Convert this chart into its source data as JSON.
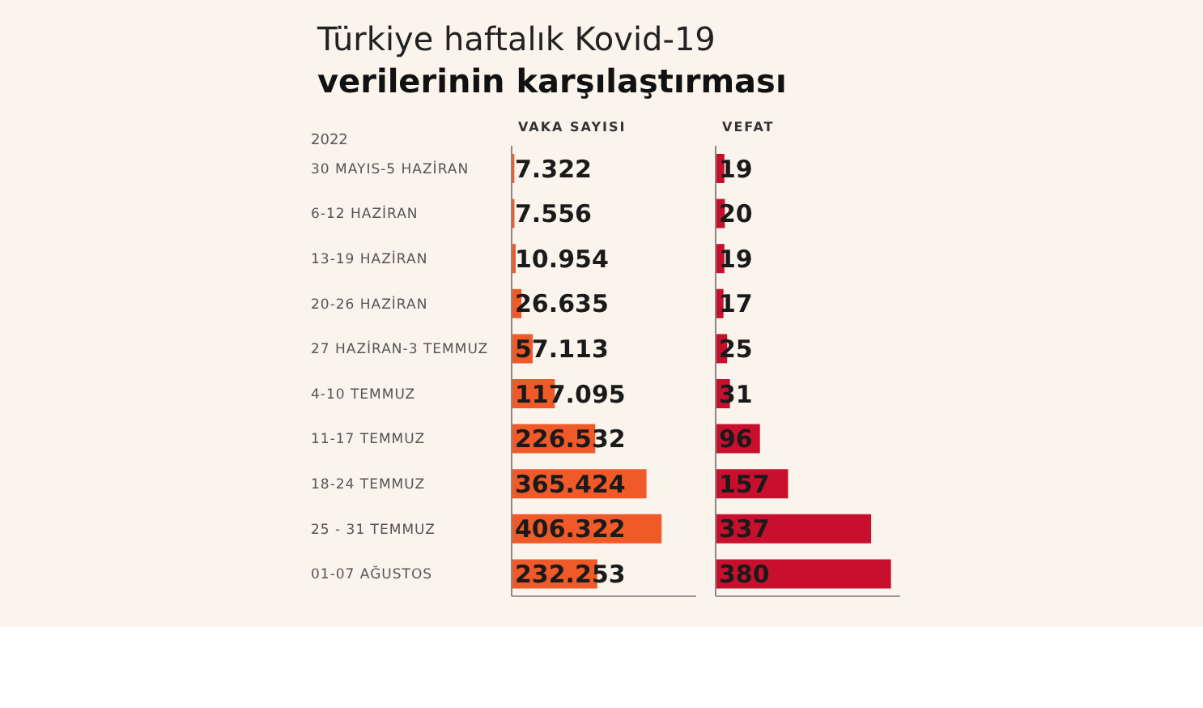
{
  "chart_data": [
    {
      "type": "bar",
      "orientation": "horizontal",
      "title": "Türkiye haftalık Kovid-19",
      "subtitle": "verilerinin karşılaştırması",
      "xlabel": "VAKA SAYISI",
      "annotations": [
        "2022"
      ],
      "categories": [
        "30 MAYIS-5 HAZİRAN",
        "6-12 HAZİRAN",
        "13-19 HAZİRAN",
        "20-26 HAZİRAN",
        "27 HAZİRAN-3 TEMMUZ",
        "4-10 TEMMUZ",
        "11-17 TEMMUZ",
        "18-24 TEMMUZ",
        "25 - 31 TEMMUZ",
        "01-07 AĞUSTOS"
      ],
      "values": [
        7322,
        7556,
        10954,
        26635,
        57113,
        117095,
        226532,
        365424,
        406322,
        232253
      ],
      "value_labels": [
        "7.322",
        "7.556",
        "10.954",
        "26.635",
        "57.113",
        "117.095",
        "226.532",
        "365.424",
        "406.322",
        "232.253"
      ],
      "color": "#f05a28",
      "xlim": [
        0,
        500000
      ],
      "tick_labels": "y"
    },
    {
      "type": "bar",
      "orientation": "horizontal",
      "xlabel": "VEFAT",
      "values": [
        19,
        20,
        19,
        17,
        25,
        31,
        96,
        157,
        337,
        380
      ],
      "value_labels": [
        "19",
        "20",
        "19",
        "17",
        "25",
        "31",
        "96",
        "157",
        "337",
        "380"
      ],
      "color": "#c8102e",
      "xlim": [
        0,
        400
      ],
      "tick_labels": false
    }
  ]
}
